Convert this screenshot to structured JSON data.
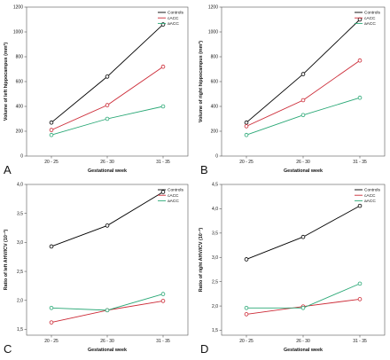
{
  "chart_data": [
    {
      "type": "line",
      "panel_label": "A",
      "xlabel": "Gestational week",
      "ylabel": "Volume of left hippocampus (mm³)",
      "categories": [
        "20 - 25",
        "26 - 30",
        "31 - 35"
      ],
      "ylim": [
        0,
        1200
      ],
      "yticks": [
        "0",
        "200",
        "400",
        "600",
        "800",
        "1000",
        "1200"
      ],
      "legend_position": "top-right",
      "series": [
        {
          "name": "Controls",
          "values": [
            270,
            640,
            1060
          ],
          "color": "#000000"
        },
        {
          "name": "cACC",
          "values": [
            210,
            410,
            720
          ],
          "color": "#cc2a36"
        },
        {
          "name": "aACC",
          "values": [
            170,
            300,
            400
          ],
          "color": "#2aa876"
        }
      ]
    },
    {
      "type": "line",
      "panel_label": "B",
      "xlabel": "Gestational week",
      "ylabel": "Volume of right hippocampus (mm³)",
      "categories": [
        "20 - 25",
        "26 - 30",
        "31 - 35"
      ],
      "ylim": [
        0,
        1200
      ],
      "yticks": [
        "0",
        "200",
        "400",
        "600",
        "800",
        "1000",
        "1200"
      ],
      "legend_position": "top-right",
      "series": [
        {
          "name": "Controls",
          "values": [
            270,
            660,
            1100
          ],
          "color": "#000000"
        },
        {
          "name": "cACC",
          "values": [
            240,
            450,
            770
          ],
          "color": "#cc2a36"
        },
        {
          "name": "aACC",
          "values": [
            170,
            330,
            470
          ],
          "color": "#2aa876"
        }
      ]
    },
    {
      "type": "line",
      "panel_label": "C",
      "xlabel": "Gestational week",
      "ylabel": "Ratio of left AHV/ICV (10⁻³)",
      "categories": [
        "20 - 25",
        "26 - 30",
        "31 - 35"
      ],
      "ylim": [
        1.4,
        4.0
      ],
      "yticks": [
        "1,5",
        "2,0",
        "2,5",
        "3,0",
        "3,5",
        "4,0"
      ],
      "legend_position": "top-right",
      "series": [
        {
          "name": "Controls",
          "values": [
            2.93,
            3.29,
            3.87
          ],
          "color": "#000000"
        },
        {
          "name": "cACC",
          "values": [
            1.62,
            1.83,
            1.99
          ],
          "color": "#cc2a36"
        },
        {
          "name": "aACC",
          "values": [
            1.87,
            1.83,
            2.11
          ],
          "color": "#2aa876"
        }
      ]
    },
    {
      "type": "line",
      "panel_label": "D",
      "xlabel": "Gestational week",
      "ylabel": "Ratio of right AHV/ICV (10⁻³)",
      "categories": [
        "20 - 25",
        "26 - 30",
        "31 - 35"
      ],
      "ylim": [
        1.4,
        4.5
      ],
      "yticks": [
        "1,5",
        "2,0",
        "2,5",
        "3,0",
        "3,5",
        "4,0",
        "4,5"
      ],
      "legend_position": "top-right",
      "series": [
        {
          "name": "Controls",
          "values": [
            2.96,
            3.42,
            4.06
          ],
          "color": "#000000"
        },
        {
          "name": "cACC",
          "values": [
            1.83,
            1.99,
            2.14
          ],
          "color": "#cc2a36"
        },
        {
          "name": "aACC",
          "values": [
            1.96,
            1.96,
            2.46
          ],
          "color": "#2aa876"
        }
      ]
    }
  ]
}
